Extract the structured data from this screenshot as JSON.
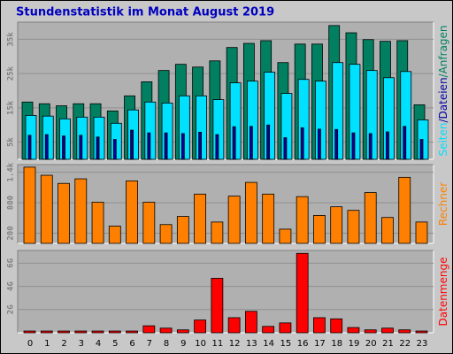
{
  "chart_data": [
    {
      "type": "bar",
      "title": "Stundenstatistik im Monat August 2019",
      "legend_separator": "/",
      "ylim": [
        0,
        40000
      ],
      "yticks": [
        {
          "value": 5000,
          "label": "5k"
        },
        {
          "value": 15000,
          "label": "15k"
        },
        {
          "value": 25000,
          "label": "25k"
        },
        {
          "value": 35000,
          "label": "35k"
        }
      ],
      "series": [
        {
          "name": "Anfragen",
          "color": "#008060",
          "values": [
            16700,
            16200,
            15600,
            16200,
            16200,
            14100,
            18500,
            22600,
            25900,
            27700,
            26900,
            28700,
            32600,
            33800,
            34600,
            28200,
            33600,
            33600,
            39000,
            36900,
            34900,
            34400,
            34600,
            15900
          ]
        },
        {
          "name": "Seiten",
          "color": "#00e0ff",
          "values": [
            12800,
            12600,
            11800,
            12300,
            12300,
            10500,
            14400,
            16700,
            16400,
            18500,
            18500,
            17400,
            22300,
            22800,
            25400,
            19200,
            23300,
            22800,
            28200,
            27700,
            25900,
            23800,
            25600,
            11500
          ]
        },
        {
          "name": "Dateien",
          "color": "#0000a0",
          "values": [
            7000,
            7200,
            6800,
            7000,
            6500,
            5800,
            8500,
            7700,
            7700,
            7500,
            7900,
            7200,
            9500,
            9600,
            10000,
            6300,
            9200,
            8800,
            8700,
            7700,
            7500,
            8000,
            9600,
            5800
          ]
        }
      ]
    },
    {
      "type": "bar",
      "ylim": [
        0,
        1550
      ],
      "yticks": [
        200,
        800,
        {
          "value": 1400,
          "label": "1.4k"
        }
      ],
      "series": [
        {
          "name": "Rechner",
          "color": "#ff8000",
          "values": [
            1500,
            1340,
            1180,
            1270,
            810,
            340,
            1230,
            810,
            370,
            530,
            970,
            420,
            930,
            1200,
            970,
            280,
            920,
            550,
            720,
            650,
            1000,
            510,
            1300,
            420
          ]
        }
      ]
    },
    {
      "type": "bar",
      "ylim": [
        0,
        7.1
      ],
      "yticks": [
        {
          "value": 2,
          "label": "2G"
        },
        {
          "value": 4,
          "label": "4G"
        },
        {
          "value": 6,
          "label": "6G"
        }
      ],
      "categories": [
        "0",
        "1",
        "2",
        "3",
        "4",
        "5",
        "6",
        "7",
        "8",
        "9",
        "10",
        "11",
        "12",
        "13",
        "14",
        "15",
        "16",
        "17",
        "18",
        "19",
        "20",
        "21",
        "22",
        "23"
      ],
      "series": [
        {
          "name": "Datenmenge",
          "color": "#ff0000",
          "values": [
            0.15,
            0.15,
            0.15,
            0.15,
            0.15,
            0.15,
            0.15,
            0.6,
            0.4,
            0.25,
            1.1,
            4.7,
            1.3,
            1.85,
            0.55,
            0.85,
            6.85,
            1.3,
            1.2,
            0.45,
            0.25,
            0.4,
            0.25,
            0.15
          ]
        }
      ]
    }
  ]
}
